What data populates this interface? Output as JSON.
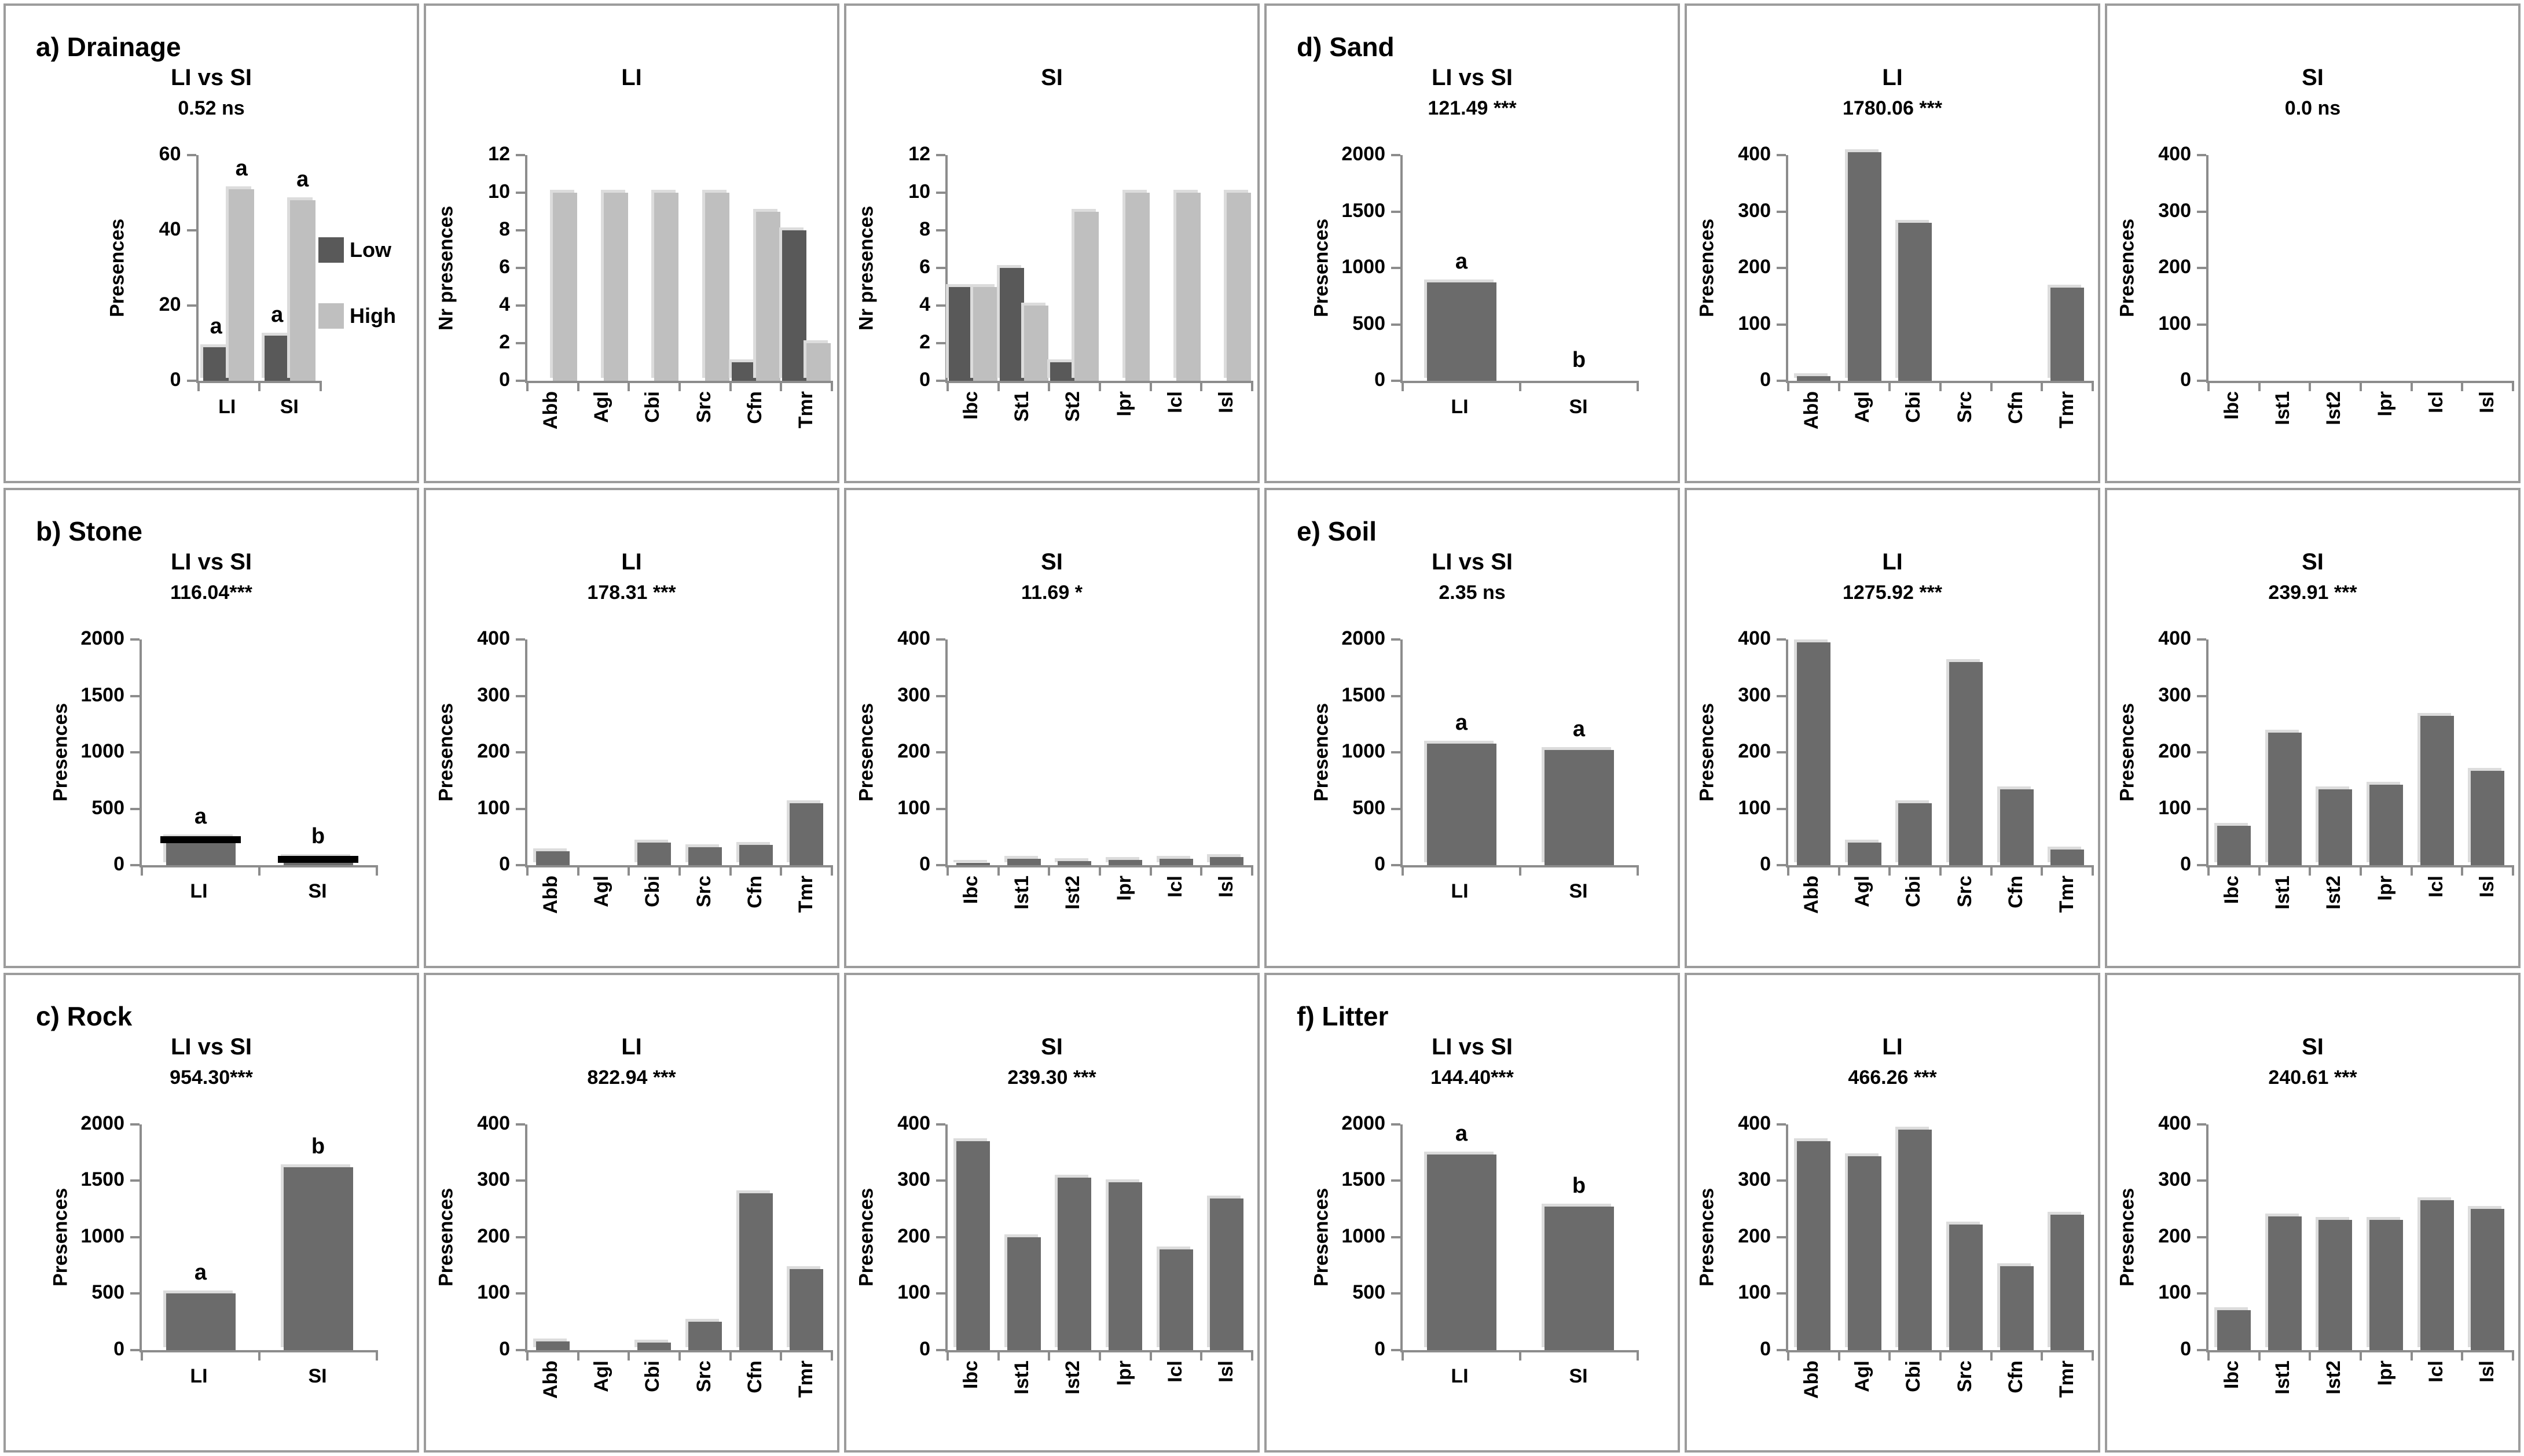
{
  "figure_title": "",
  "legend": {
    "items": [
      {
        "label": "Low",
        "color": "#595959"
      },
      {
        "label": "High",
        "color": "#bfbfbf"
      }
    ]
  },
  "colors": {
    "single_bar": "#6b6b6b",
    "axis": "#8c8c8c",
    "panel_border": "#9c9c9c"
  },
  "chart_data": [
    {
      "panel": "a) Drainage",
      "charts": [
        {
          "type": "bar",
          "title": "LI vs SI",
          "stat": "0.52 ns",
          "ylabel": "Presences",
          "ylim": [
            0,
            60
          ],
          "yticks": [
            0,
            20,
            40,
            60
          ],
          "categories": [
            "LI",
            "SI"
          ],
          "series": [
            {
              "name": "Low",
              "values": [
                9,
                12
              ]
            },
            {
              "name": "High",
              "values": [
                51,
                48
              ]
            }
          ],
          "letters": [
            [
              "a",
              "a"
            ],
            [
              "a",
              "a"
            ]
          ],
          "legend": true,
          "caps": false
        },
        {
          "type": "bar",
          "title": "LI",
          "stat": "",
          "ylabel": "Nr presences",
          "ylim": [
            0,
            12
          ],
          "yticks": [
            0,
            2,
            4,
            6,
            8,
            10,
            12
          ],
          "categories": [
            "Abb",
            "Agl",
            "Cbi",
            "Src",
            "Cfn",
            "Tmr"
          ],
          "series": [
            {
              "name": "Low",
              "values": [
                0,
                0,
                0,
                0,
                1,
                8
              ]
            },
            {
              "name": "High",
              "values": [
                10,
                10,
                10,
                10,
                9,
                2
              ]
            }
          ],
          "letters": null,
          "legend": false,
          "caps": false
        },
        {
          "type": "bar",
          "title": "SI",
          "stat": "",
          "ylabel": "Nr presences",
          "ylim": [
            0,
            12
          ],
          "yticks": [
            0,
            2,
            4,
            6,
            8,
            10,
            12
          ],
          "categories": [
            "Ibc",
            "St1",
            "St2",
            "Ipr",
            "Icl",
            "Isl"
          ],
          "series": [
            {
              "name": "Low",
              "values": [
                5,
                6,
                1,
                0,
                0,
                0
              ]
            },
            {
              "name": "High",
              "values": [
                5,
                4,
                9,
                10,
                10,
                10
              ]
            }
          ],
          "letters": null,
          "legend": false,
          "caps": false
        }
      ]
    },
    {
      "panel": "b) Stone",
      "charts": [
        {
          "type": "bar",
          "title": "LI vs SI",
          "stat": "116.04***",
          "ylabel": "Presences",
          "ylim": [
            0,
            2000
          ],
          "yticks": [
            0,
            500,
            1000,
            1500,
            2000
          ],
          "categories": [
            "LI",
            "SI"
          ],
          "series": [
            {
              "name": "Presences",
              "values": [
                250,
                75
              ]
            }
          ],
          "letters": [
            [
              "a",
              "b"
            ]
          ],
          "legend": false,
          "caps": true
        },
        {
          "type": "bar",
          "title": "LI",
          "stat": "178.31 ***",
          "ylabel": "Presences",
          "ylim": [
            0,
            400
          ],
          "yticks": [
            0,
            100,
            200,
            300,
            400
          ],
          "categories": [
            "Abb",
            "Agl",
            "Cbi",
            "Src",
            "Cfn",
            "Tmr"
          ],
          "series": [
            {
              "name": "Presences",
              "values": [
                25,
                0,
                40,
                32,
                36,
                110
              ]
            }
          ],
          "letters": null,
          "legend": false,
          "caps": false
        },
        {
          "type": "bar",
          "title": "SI",
          "stat": "11.69 *",
          "ylabel": "Presences",
          "ylim": [
            0,
            400
          ],
          "yticks": [
            0,
            100,
            200,
            300,
            400
          ],
          "categories": [
            "Ibc",
            "Ist1",
            "Ist2",
            "Ipr",
            "Icl",
            "Isl"
          ],
          "series": [
            {
              "name": "Presences",
              "values": [
                4,
                12,
                8,
                10,
                12,
                15
              ]
            }
          ],
          "letters": null,
          "legend": false,
          "caps": false
        }
      ]
    },
    {
      "panel": "c) Rock",
      "charts": [
        {
          "type": "bar",
          "title": "LI vs SI",
          "stat": "954.30***",
          "ylabel": "Presences",
          "ylim": [
            0,
            2000
          ],
          "yticks": [
            0,
            500,
            1000,
            1500,
            2000
          ],
          "categories": [
            "LI",
            "SI"
          ],
          "series": [
            {
              "name": "Presences",
              "values": [
                500,
                1620
              ]
            }
          ],
          "letters": [
            [
              "a",
              "b"
            ]
          ],
          "legend": false,
          "caps": false
        },
        {
          "type": "bar",
          "title": "LI",
          "stat": "822.94 ***",
          "ylabel": "Presences",
          "ylim": [
            0,
            400
          ],
          "yticks": [
            0,
            100,
            200,
            300,
            400
          ],
          "categories": [
            "Abb",
            "Agl",
            "Cbi",
            "Src",
            "Cfn",
            "Tmr"
          ],
          "series": [
            {
              "name": "Presences",
              "values": [
                15,
                0,
                13,
                50,
                278,
                143
              ]
            }
          ],
          "letters": null,
          "legend": false,
          "caps": false
        },
        {
          "type": "bar",
          "title": "SI",
          "stat": "239.30 ***",
          "ylabel": "Presences",
          "ylim": [
            0,
            400
          ],
          "yticks": [
            0,
            100,
            200,
            300,
            400
          ],
          "categories": [
            "Ibc",
            "Ist1",
            "Ist2",
            "Ipr",
            "Icl",
            "Isl"
          ],
          "series": [
            {
              "name": "Presences",
              "values": [
                370,
                200,
                305,
                297,
                178,
                268
              ]
            }
          ],
          "letters": null,
          "legend": false,
          "caps": false
        }
      ]
    },
    {
      "panel": "d) Sand",
      "charts": [
        {
          "type": "bar",
          "title": "LI vs SI",
          "stat": "121.49 ***",
          "ylabel": "Presences",
          "ylim": [
            0,
            2000
          ],
          "yticks": [
            0,
            500,
            1000,
            1500,
            2000
          ],
          "categories": [
            "LI",
            "SI"
          ],
          "series": [
            {
              "name": "Presences",
              "values": [
                870,
                0
              ]
            }
          ],
          "letters": [
            [
              "a",
              "b"
            ]
          ],
          "legend": false,
          "caps": false
        },
        {
          "type": "bar",
          "title": "LI",
          "stat": "1780.06 ***",
          "ylabel": "Presences",
          "ylim": [
            0,
            400
          ],
          "yticks": [
            0,
            100,
            200,
            300,
            400
          ],
          "categories": [
            "Abb",
            "Agl",
            "Cbi",
            "Src",
            "Cfn",
            "Tmr"
          ],
          "series": [
            {
              "name": "Presences",
              "values": [
                8,
                405,
                280,
                0,
                0,
                165
              ]
            }
          ],
          "letters": null,
          "legend": false,
          "caps": false
        },
        {
          "type": "bar",
          "title": "SI",
          "stat": "0.0 ns",
          "ylabel": "Presences",
          "ylim": [
            0,
            400
          ],
          "yticks": [
            0,
            100,
            200,
            300,
            400
          ],
          "categories": [
            "Ibc",
            "Ist1",
            "Ist2",
            "Ipr",
            "Icl",
            "Isl"
          ],
          "series": [
            {
              "name": "Presences",
              "values": [
                0,
                0,
                0,
                0,
                0,
                0
              ]
            }
          ],
          "letters": null,
          "legend": false,
          "caps": false
        }
      ]
    },
    {
      "panel": "e) Soil",
      "charts": [
        {
          "type": "bar",
          "title": "LI vs SI",
          "stat": "2.35 ns",
          "ylabel": "Presences",
          "ylim": [
            0,
            2000
          ],
          "yticks": [
            0,
            500,
            1000,
            1500,
            2000
          ],
          "categories": [
            "LI",
            "SI"
          ],
          "series": [
            {
              "name": "Presences",
              "values": [
                1080,
                1020
              ]
            }
          ],
          "letters": [
            [
              "a",
              "a"
            ]
          ],
          "legend": false,
          "caps": false
        },
        {
          "type": "bar",
          "title": "LI",
          "stat": "1275.92 ***",
          "ylabel": "Presences",
          "ylim": [
            0,
            400
          ],
          "yticks": [
            0,
            100,
            200,
            300,
            400
          ],
          "categories": [
            "Abb",
            "Agl",
            "Cbi",
            "Src",
            "Cfn",
            "Tmr"
          ],
          "series": [
            {
              "name": "Presences",
              "values": [
                395,
                40,
                110,
                360,
                135,
                28
              ]
            }
          ],
          "letters": null,
          "legend": false,
          "caps": false
        },
        {
          "type": "bar",
          "title": "SI",
          "stat": "239.91 ***",
          "ylabel": "Presences",
          "ylim": [
            0,
            400
          ],
          "yticks": [
            0,
            100,
            200,
            300,
            400
          ],
          "categories": [
            "Ibc",
            "Ist1",
            "Ist2",
            "Ipr",
            "Icl",
            "Isl"
          ],
          "series": [
            {
              "name": "Presences",
              "values": [
                70,
                235,
                135,
                143,
                265,
                168
              ]
            }
          ],
          "letters": null,
          "legend": false,
          "caps": false
        }
      ]
    },
    {
      "panel": "f) Litter",
      "charts": [
        {
          "type": "bar",
          "title": "LI vs SI",
          "stat": "144.40***",
          "ylabel": "Presences",
          "ylim": [
            0,
            2000
          ],
          "yticks": [
            0,
            500,
            1000,
            1500,
            2000
          ],
          "categories": [
            "LI",
            "SI"
          ],
          "series": [
            {
              "name": "Presences",
              "values": [
                1730,
                1270
              ]
            }
          ],
          "letters": [
            [
              "a",
              "b"
            ]
          ],
          "legend": false,
          "caps": false
        },
        {
          "type": "bar",
          "title": "LI",
          "stat": "466.26 ***",
          "ylabel": "Presences",
          "ylim": [
            0,
            400
          ],
          "yticks": [
            0,
            100,
            200,
            300,
            400
          ],
          "categories": [
            "Abb",
            "Agl",
            "Cbi",
            "Src",
            "Cfn",
            "Tmr"
          ],
          "series": [
            {
              "name": "Presences",
              "values": [
                370,
                343,
                390,
                222,
                148,
                240
              ]
            }
          ],
          "letters": null,
          "legend": false,
          "caps": false
        },
        {
          "type": "bar",
          "title": "SI",
          "stat": "240.61 ***",
          "ylabel": "Presences",
          "ylim": [
            0,
            400
          ],
          "yticks": [
            0,
            100,
            200,
            300,
            400
          ],
          "categories": [
            "Ibc",
            "Ist1",
            "Ist2",
            "Ipr",
            "Icl",
            "Isl"
          ],
          "series": [
            {
              "name": "Presences",
              "values": [
                70,
                237,
                230,
                230,
                265,
                250
              ]
            }
          ],
          "letters": null,
          "legend": false,
          "caps": false
        }
      ]
    }
  ]
}
